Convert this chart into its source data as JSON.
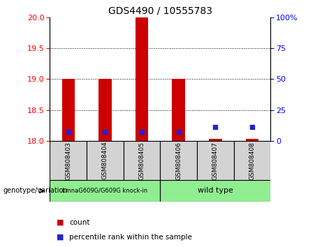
{
  "title": "GDS4490 / 10555783",
  "samples": [
    "GSM808403",
    "GSM808404",
    "GSM808405",
    "GSM808406",
    "GSM808407",
    "GSM808408"
  ],
  "group1_label": "LmnaG609G/G609G knock-in",
  "group2_label": "wild type",
  "genotype_label": "genotype/variation",
  "ylim_left": [
    18,
    20
  ],
  "ylim_right": [
    0,
    100
  ],
  "yticks_left": [
    18,
    18.5,
    19,
    19.5,
    20
  ],
  "yticks_right": [
    0,
    25,
    50,
    75,
    100
  ],
  "ytick_right_labels": [
    "0",
    "25",
    "50",
    "75",
    "100%"
  ],
  "red_bar_tops": [
    19.0,
    19.0,
    20.0,
    19.0,
    18.03,
    18.03
  ],
  "red_bar_base": 18.0,
  "blue_dot_left_vals": [
    18.15,
    18.15,
    18.15,
    18.15,
    18.22,
    18.22
  ],
  "bar_width": 0.35,
  "red_color": "#cc0000",
  "blue_color": "#2222cc",
  "legend_count_label": "count",
  "legend_pct_label": "percentile rank within the sample"
}
